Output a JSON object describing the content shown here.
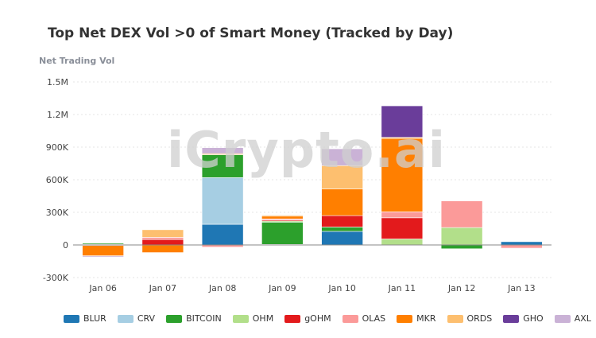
{
  "watermark": "iCrypto.ai",
  "chart_data": {
    "type": "bar",
    "stacked": true,
    "title": "Top Net DEX Vol >0 of Smart Money (Tracked by Day)",
    "ylabel": "Net Trading Vol",
    "xlabel": "",
    "ylim": [
      -300000,
      1500000
    ],
    "yticks": [
      -300000,
      0,
      300000,
      600000,
      900000,
      1200000,
      1500000
    ],
    "ytick_labels": [
      "-300K",
      "0",
      "300K",
      "600K",
      "900K",
      "1.2M",
      "1.5M"
    ],
    "categories": [
      "Jan 06",
      "Jan 07",
      "Jan 08",
      "Jan 09",
      "Jan 10",
      "Jan 11",
      "Jan 12",
      "Jan 13"
    ],
    "series": [
      {
        "name": "BLUR",
        "color": "#1f77b4",
        "values": [
          0,
          0,
          190000,
          0,
          125000,
          0,
          0,
          30000
        ]
      },
      {
        "name": "CRV",
        "color": "#a6cee3",
        "values": [
          5000,
          0,
          430000,
          5000,
          0,
          0,
          0,
          0
        ]
      },
      {
        "name": "BITCOIN",
        "color": "#2ca02c",
        "values": [
          10000,
          0,
          210000,
          205000,
          40000,
          0,
          -35000,
          0
        ]
      },
      {
        "name": "OHM",
        "color": "#b2df8a",
        "values": [
          0,
          0,
          0,
          10000,
          0,
          55000,
          160000,
          0
        ]
      },
      {
        "name": "gOHM",
        "color": "#e31a1c",
        "values": [
          0,
          50000,
          0,
          10000,
          105000,
          195000,
          0,
          0
        ]
      },
      {
        "name": "OLAS",
        "color": "#fb9a99",
        "values": [
          -5000,
          20000,
          -20000,
          10000,
          0,
          55000,
          245000,
          -30000
        ]
      },
      {
        "name": "MKR",
        "color": "#ff7f00",
        "values": [
          -95000,
          -70000,
          0,
          25000,
          245000,
          675000,
          0,
          0
        ]
      },
      {
        "name": "ORDS",
        "color": "#fdbf6f",
        "values": [
          0,
          70000,
          10000,
          10000,
          215000,
          10000,
          0,
          0
        ]
      },
      {
        "name": "GHO",
        "color": "#6a3d9a",
        "values": [
          0,
          0,
          0,
          0,
          0,
          290000,
          0,
          0
        ]
      },
      {
        "name": "AXL",
        "color": "#cab2d6",
        "values": [
          -10000,
          0,
          55000,
          5000,
          155000,
          0,
          0,
          -5000
        ]
      }
    ],
    "grid": true,
    "legend_position": "bottom"
  }
}
